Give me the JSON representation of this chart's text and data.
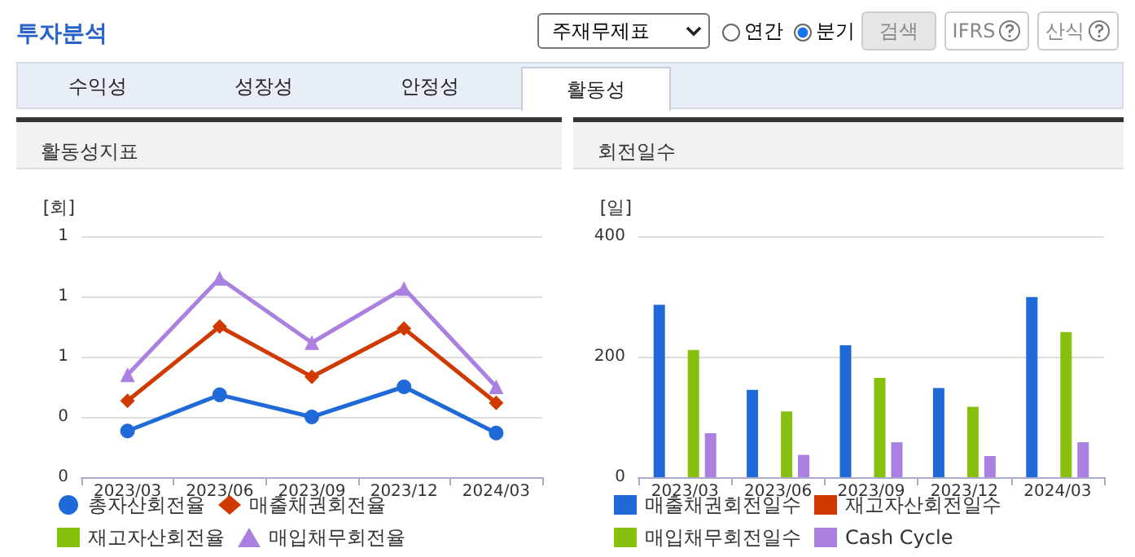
{
  "chart_data": [
    {
      "type": "other",
      "title": "투자분석",
      "annotations": [
        "주재무제표",
        "연간",
        "분기",
        "검색",
        "IFRS",
        "산식",
        "수익성",
        "성장성",
        "안정성",
        "활동성"
      ]
    },
    {
      "type": "line",
      "title": "활동성지표",
      "ylabel": "[회]",
      "categories": [
        "2023/03",
        "2023/06",
        "2023/09",
        "2023/12",
        "2024/03"
      ],
      "series": [
        {
          "name": "총자산회전율",
          "color": "#1f6ad8",
          "marker": "circle",
          "values": [
            0.23,
            0.41,
            0.3,
            0.45,
            0.22
          ]
        },
        {
          "name": "매출채권회전율",
          "color": "#d03a00",
          "marker": "diamond",
          "values": [
            0.38,
            0.75,
            0.5,
            0.74,
            0.37
          ]
        },
        {
          "name": "재고자산회전율",
          "color": "#88c010",
          "marker": "square",
          "values": [
            null,
            null,
            null,
            null,
            null
          ]
        },
        {
          "name": "매입채무회전율",
          "color": "#aa80e0",
          "marker": "triangle",
          "values": [
            0.51,
            0.99,
            0.67,
            0.94,
            0.45
          ]
        }
      ],
      "ylim": [
        0,
        1.2
      ],
      "yticks": [
        {
          "value": 0,
          "label": "0"
        },
        {
          "value": 0.3,
          "label": "0"
        },
        {
          "value": 0.6,
          "label": "1"
        },
        {
          "value": 0.9,
          "label": "1"
        },
        {
          "value": 1.2,
          "label": "1"
        }
      ],
      "grid": "y",
      "legend": "bottom",
      "line_style": "solid"
    },
    {
      "type": "bar",
      "title": "회전일수",
      "ylabel": "[일]",
      "categories": [
        "2023/03",
        "2023/06",
        "2023/09",
        "2023/12",
        "2024/03"
      ],
      "series": [
        {
          "name": "매출채권회전일수",
          "color": "#1f6ad8",
          "values": [
            286,
            145,
            219,
            148,
            299
          ]
        },
        {
          "name": "재고자산회전일수",
          "color": "#d03a00",
          "values": [
            null,
            null,
            null,
            null,
            null
          ]
        },
        {
          "name": "매입채무회전일수",
          "color": "#88c010",
          "values": [
            211,
            109,
            165,
            117,
            241
          ]
        },
        {
          "name": "Cash Cycle",
          "color": "#aa80e0",
          "values": [
            73,
            37,
            58,
            35,
            58
          ]
        }
      ],
      "ylim": [
        0,
        400
      ],
      "yticks": [
        0,
        200,
        400
      ],
      "grid": "y",
      "legend": "bottom"
    }
  ]
}
